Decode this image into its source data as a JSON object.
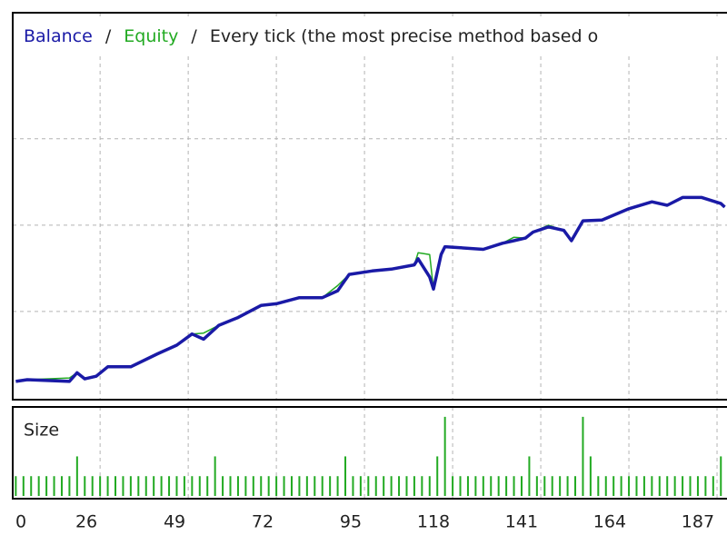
{
  "chart_data": [
    {
      "type": "line",
      "title": "Every tick (the most precise method based o",
      "separator": "/",
      "x": [
        4,
        7,
        18,
        20,
        22,
        25,
        28,
        34,
        41,
        46,
        50,
        53,
        57,
        62,
        68,
        72,
        78,
        84,
        88,
        91,
        97,
        102,
        108,
        109,
        112,
        113,
        115,
        116,
        126,
        131,
        134,
        137,
        139,
        143,
        147,
        149,
        152,
        157,
        164,
        170,
        174,
        178,
        183,
        188,
        189
      ],
      "series": [
        {
          "name": "Equity",
          "color": "#22aa22",
          "values": [
            0.19,
            0.21,
            0.23,
            0.29,
            0.22,
            0.25,
            0.36,
            0.36,
            0.51,
            0.61,
            0.74,
            0.75,
            0.84,
            0.93,
            1.07,
            1.09,
            1.16,
            1.16,
            1.3,
            1.43,
            1.47,
            1.49,
            1.54,
            1.68,
            1.66,
            1.26,
            1.66,
            1.75,
            1.72,
            1.79,
            1.86,
            1.85,
            1.92,
            2.0,
            1.94,
            1.82,
            2.05,
            2.06,
            2.19,
            2.27,
            2.23,
            2.32,
            2.32,
            2.25,
            2.21
          ]
        },
        {
          "name": "Balance",
          "color": "#1a1aa6",
          "values": [
            0.19,
            0.21,
            0.19,
            0.29,
            0.22,
            0.25,
            0.36,
            0.36,
            0.51,
            0.61,
            0.74,
            0.68,
            0.84,
            0.93,
            1.07,
            1.09,
            1.16,
            1.16,
            1.24,
            1.43,
            1.47,
            1.49,
            1.54,
            1.61,
            1.4,
            1.26,
            1.66,
            1.75,
            1.72,
            1.79,
            1.82,
            1.85,
            1.92,
            1.98,
            1.94,
            1.82,
            2.05,
            2.06,
            2.19,
            2.27,
            2.23,
            2.32,
            2.32,
            2.25,
            2.21
          ]
        }
      ],
      "xlim": [
        3.2,
        189.6
      ],
      "ylim": [
        0,
        4.46
      ],
      "yticks": [
        1,
        2,
        3
      ],
      "grid": true
    },
    {
      "type": "bar",
      "title": "Size",
      "color": "#22aa22",
      "x": [
        4,
        6,
        8,
        10,
        12,
        14,
        16,
        18,
        20,
        22,
        24,
        26,
        28,
        30,
        32,
        34,
        36,
        38,
        40,
        42,
        44,
        46,
        48,
        50,
        52,
        54,
        56,
        58,
        60,
        62,
        64,
        66,
        68,
        70,
        72,
        74,
        76,
        78,
        80,
        82,
        84,
        86,
        88,
        90,
        92,
        94,
        96,
        98,
        100,
        102,
        104,
        106,
        108,
        110,
        112,
        114,
        116,
        118,
        120,
        122,
        124,
        126,
        128,
        130,
        132,
        134,
        136,
        138,
        140,
        142,
        144,
        146,
        148,
        150,
        152,
        154,
        156,
        158,
        160,
        162,
        164,
        166,
        168,
        170,
        172,
        174,
        176,
        178,
        180,
        182,
        184,
        186,
        188
      ],
      "values": [
        1,
        1,
        1,
        1,
        1,
        1,
        1,
        1,
        2,
        1,
        1,
        1,
        1,
        1,
        1,
        1,
        1,
        1,
        1,
        1,
        1,
        1,
        1,
        1,
        1,
        1,
        2,
        1,
        1,
        1,
        1,
        1,
        1,
        1,
        1,
        1,
        1,
        1,
        1,
        1,
        1,
        1,
        1,
        2,
        1,
        1,
        1,
        1,
        1,
        1,
        1,
        1,
        1,
        1,
        1,
        2,
        4,
        1,
        1,
        1,
        1,
        1,
        1,
        1,
        1,
        1,
        1,
        2,
        1,
        1,
        1,
        1,
        1,
        1,
        4,
        2,
        1,
        1,
        1,
        1,
        1,
        1,
        1,
        1,
        1,
        1,
        1,
        1,
        1,
        1,
        1,
        1,
        2
      ],
      "xlim": [
        3.2,
        189.6
      ],
      "ylim": [
        0,
        4.5
      ],
      "xticks": [
        0,
        26,
        49,
        72,
        95,
        118,
        141,
        164,
        187
      ],
      "grid": true
    }
  ]
}
